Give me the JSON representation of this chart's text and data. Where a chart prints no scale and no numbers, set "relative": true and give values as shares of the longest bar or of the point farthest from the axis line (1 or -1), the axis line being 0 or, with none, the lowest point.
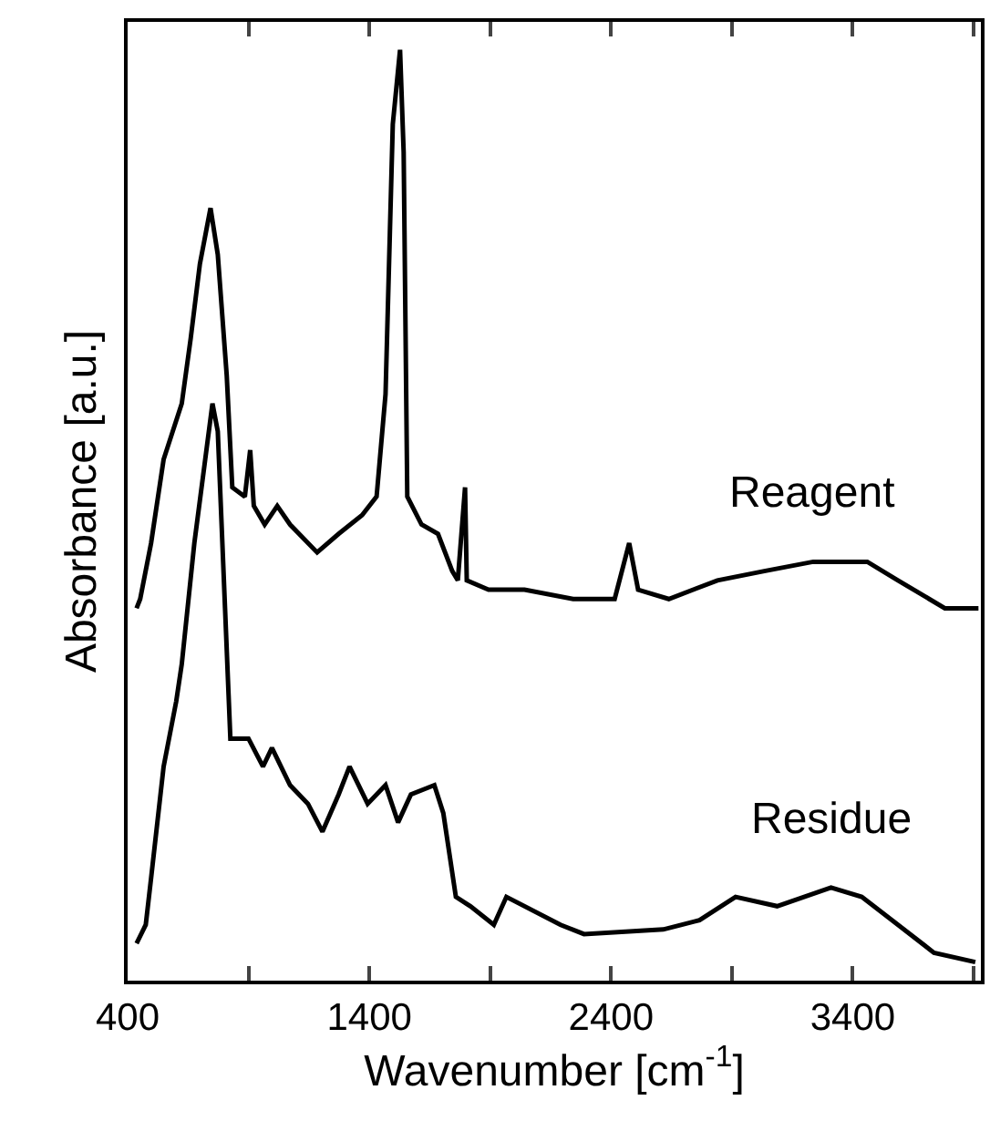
{
  "chart_data": {
    "type": "line",
    "relative": true,
    "xlabel": "Wavenumber [cm$^{-1}$]",
    "ylabel": "Absorbance [a.u.]",
    "xlim": [
      400,
      3930
    ],
    "xticks": [
      400,
      {
        "value": 900,
        "label": null
      },
      1400,
      {
        "value": 1900,
        "label": null
      },
      2400,
      {
        "value": 2900,
        "label": null
      },
      3400,
      {
        "value": 3900,
        "label": null
      }
    ],
    "legend": false,
    "marker": "none",
    "line_style": "solid",
    "series": [
      {
        "name": "Reagent",
        "color": "#000000",
        "x": [
          437,
          452,
          497,
          549,
          624,
          661,
          699,
          743,
          773,
          810,
          833,
          885,
          907,
          922,
          967,
          1019,
          1072,
          1184,
          1273,
          1370,
          1430,
          1467,
          1497,
          1527,
          1542,
          1557,
          1616,
          1684,
          1743,
          1766,
          1796,
          1803,
          1893,
          2042,
          2243,
          2415,
          2475,
          2512,
          2639,
          2840,
          3034,
          3236,
          3460,
          3587,
          3781,
          3920
        ],
        "values": [
          0.4,
          0.41,
          0.47,
          0.56,
          0.62,
          0.69,
          0.77,
          0.83,
          0.78,
          0.65,
          0.53,
          0.52,
          0.57,
          0.51,
          0.49,
          0.51,
          0.49,
          0.46,
          0.48,
          0.5,
          0.52,
          0.63,
          0.92,
          1.0,
          0.89,
          0.52,
          0.49,
          0.48,
          0.44,
          0.43,
          0.53,
          0.43,
          0.42,
          0.42,
          0.41,
          0.41,
          0.47,
          0.42,
          0.41,
          0.43,
          0.44,
          0.45,
          0.45,
          0.43,
          0.4,
          0.4
        ]
      },
      {
        "name": "Residue",
        "color": "#000000",
        "x": [
          437,
          475,
          497,
          549,
          601,
          624,
          676,
          721,
          751,
          773,
          803,
          825,
          900,
          960,
          997,
          1072,
          1146,
          1206,
          1273,
          1318,
          1393,
          1467,
          1519,
          1572,
          1669,
          1706,
          1758,
          1818,
          1915,
          1967,
          2191,
          2288,
          2616,
          2766,
          2915,
          3087,
          3310,
          3437,
          3587,
          3736,
          3907
        ],
        "values": [
          0.04,
          0.06,
          0.11,
          0.23,
          0.3,
          0.34,
          0.47,
          0.56,
          0.62,
          0.59,
          0.4,
          0.26,
          0.26,
          0.23,
          0.25,
          0.21,
          0.19,
          0.16,
          0.2,
          0.23,
          0.19,
          0.21,
          0.17,
          0.2,
          0.21,
          0.18,
          0.09,
          0.08,
          0.06,
          0.09,
          0.06,
          0.05,
          0.055,
          0.065,
          0.09,
          0.08,
          0.1,
          0.09,
          0.06,
          0.03,
          0.02
        ]
      }
    ]
  }
}
